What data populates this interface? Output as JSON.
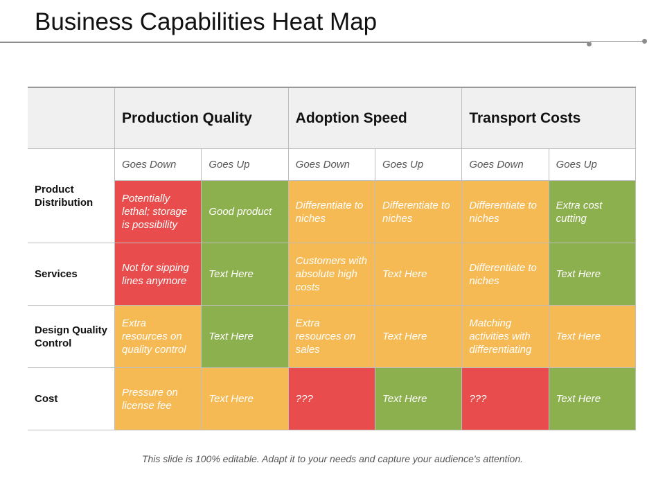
{
  "title": "Business Capabilities Heat Map",
  "columns": [
    {
      "label": "Production Quality",
      "sub": [
        "Goes Down",
        "Goes Up"
      ]
    },
    {
      "label": "Adoption Speed",
      "sub": [
        "Goes Down",
        "Goes Up"
      ]
    },
    {
      "label": "Transport Costs",
      "sub": [
        "Goes Down",
        "Goes Up"
      ]
    }
  ],
  "rows": [
    {
      "label": "Product Distribution",
      "cells": [
        {
          "text": "Potentially lethal; storage is possibility",
          "color": "red"
        },
        {
          "text": "Good product",
          "color": "green"
        },
        {
          "text": "Differentiate to niches",
          "color": "orange"
        },
        {
          "text": "Differentiate to niches",
          "color": "orange"
        },
        {
          "text": "Differentiate to niches",
          "color": "orange"
        },
        {
          "text": "Extra cost cutting",
          "color": "green"
        }
      ]
    },
    {
      "label": "Services",
      "cells": [
        {
          "text": "Not for sipping lines anymore",
          "color": "red"
        },
        {
          "text": "Text Here",
          "color": "green"
        },
        {
          "text": "Customers with absolute high costs",
          "color": "orange"
        },
        {
          "text": "Text Here",
          "color": "orange"
        },
        {
          "text": "Differentiate to niches",
          "color": "orange"
        },
        {
          "text": "Text Here",
          "color": "green"
        }
      ]
    },
    {
      "label": "Design Quality Control",
      "cells": [
        {
          "text": "Extra resources on quality control",
          "color": "orange"
        },
        {
          "text": "Text Here",
          "color": "green"
        },
        {
          "text": "Extra resources on sales",
          "color": "orange"
        },
        {
          "text": "Text Here",
          "color": "orange"
        },
        {
          "text": "Matching activities with differentiating",
          "color": "orange"
        },
        {
          "text": "Text Here",
          "color": "orange"
        }
      ]
    },
    {
      "label": "Cost",
      "cells": [
        {
          "text": "Pressure on license fee",
          "color": "orange"
        },
        {
          "text": "Text Here",
          "color": "orange"
        },
        {
          "text": "???",
          "color": "red"
        },
        {
          "text": "Text Here",
          "color": "green"
        },
        {
          "text": "???",
          "color": "red"
        },
        {
          "text": "Text Here",
          "color": "green"
        }
      ]
    }
  ],
  "colors": {
    "red": "#e84c4c",
    "green": "#8db04f",
    "orange": "#f6ba54"
  },
  "footer": "This slide is 100% editable. Adapt it to your needs and capture your audience's attention."
}
